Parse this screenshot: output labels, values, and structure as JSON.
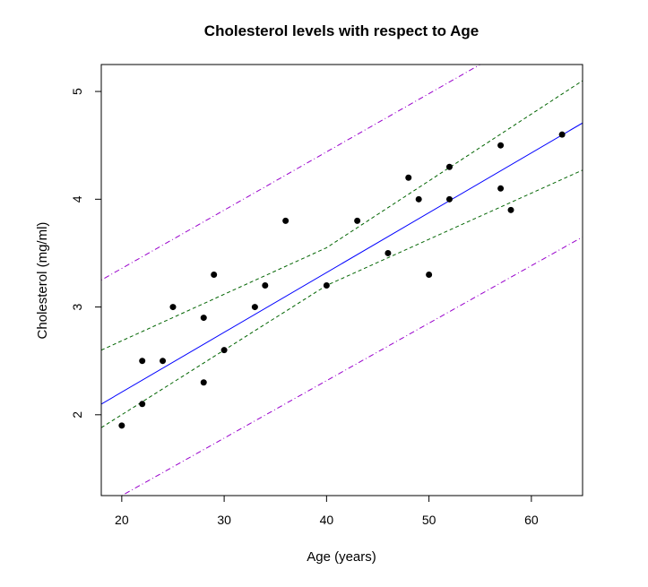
{
  "chart_data": {
    "type": "scatter",
    "title": "Cholesterol levels with respect to Age",
    "xlabel": "Age (years)",
    "ylabel": "Cholesterol (mg/ml)",
    "xlim": [
      18,
      65
    ],
    "ylim": [
      1.25,
      5.25
    ],
    "xticks": [
      20,
      30,
      40,
      50,
      60
    ],
    "yticks": [
      2,
      3,
      4,
      5
    ],
    "grid": false,
    "points": [
      {
        "x": 20,
        "y": 1.9
      },
      {
        "x": 22,
        "y": 2.1
      },
      {
        "x": 22,
        "y": 2.5
      },
      {
        "x": 24,
        "y": 2.5
      },
      {
        "x": 25,
        "y": 3.0
      },
      {
        "x": 28,
        "y": 2.9
      },
      {
        "x": 28,
        "y": 2.3
      },
      {
        "x": 29,
        "y": 3.3
      },
      {
        "x": 30,
        "y": 2.6
      },
      {
        "x": 33,
        "y": 3.0
      },
      {
        "x": 34,
        "y": 3.2
      },
      {
        "x": 36,
        "y": 3.8
      },
      {
        "x": 40,
        "y": 3.2
      },
      {
        "x": 43,
        "y": 3.8
      },
      {
        "x": 46,
        "y": 3.5
      },
      {
        "x": 48,
        "y": 4.2
      },
      {
        "x": 49,
        "y": 4.0
      },
      {
        "x": 50,
        "y": 3.3
      },
      {
        "x": 52,
        "y": 4.3
      },
      {
        "x": 52,
        "y": 4.0
      },
      {
        "x": 57,
        "y": 4.5
      },
      {
        "x": 57,
        "y": 4.1
      },
      {
        "x": 58,
        "y": 3.9
      },
      {
        "x": 63,
        "y": 4.6
      }
    ],
    "fit_line": {
      "intercept": 1.1,
      "slope": 0.0555,
      "color": "#0000ff"
    },
    "confidence_band": {
      "color": "#006400",
      "upper": [
        {
          "x": 18,
          "y": 2.6
        },
        {
          "x": 40,
          "y": 3.55
        },
        {
          "x": 65,
          "y": 5.1
        }
      ],
      "lower": [
        {
          "x": 18,
          "y": 1.88
        },
        {
          "x": 40,
          "y": 3.2
        },
        {
          "x": 65,
          "y": 4.27
        }
      ]
    },
    "prediction_band": {
      "color": "#9900cc",
      "upper": [
        {
          "x": 18,
          "y": 3.25
        },
        {
          "x": 55,
          "y": 5.25
        }
      ],
      "lower": [
        {
          "x": 20,
          "y": 1.25
        },
        {
          "x": 65,
          "y": 3.65
        }
      ]
    }
  }
}
